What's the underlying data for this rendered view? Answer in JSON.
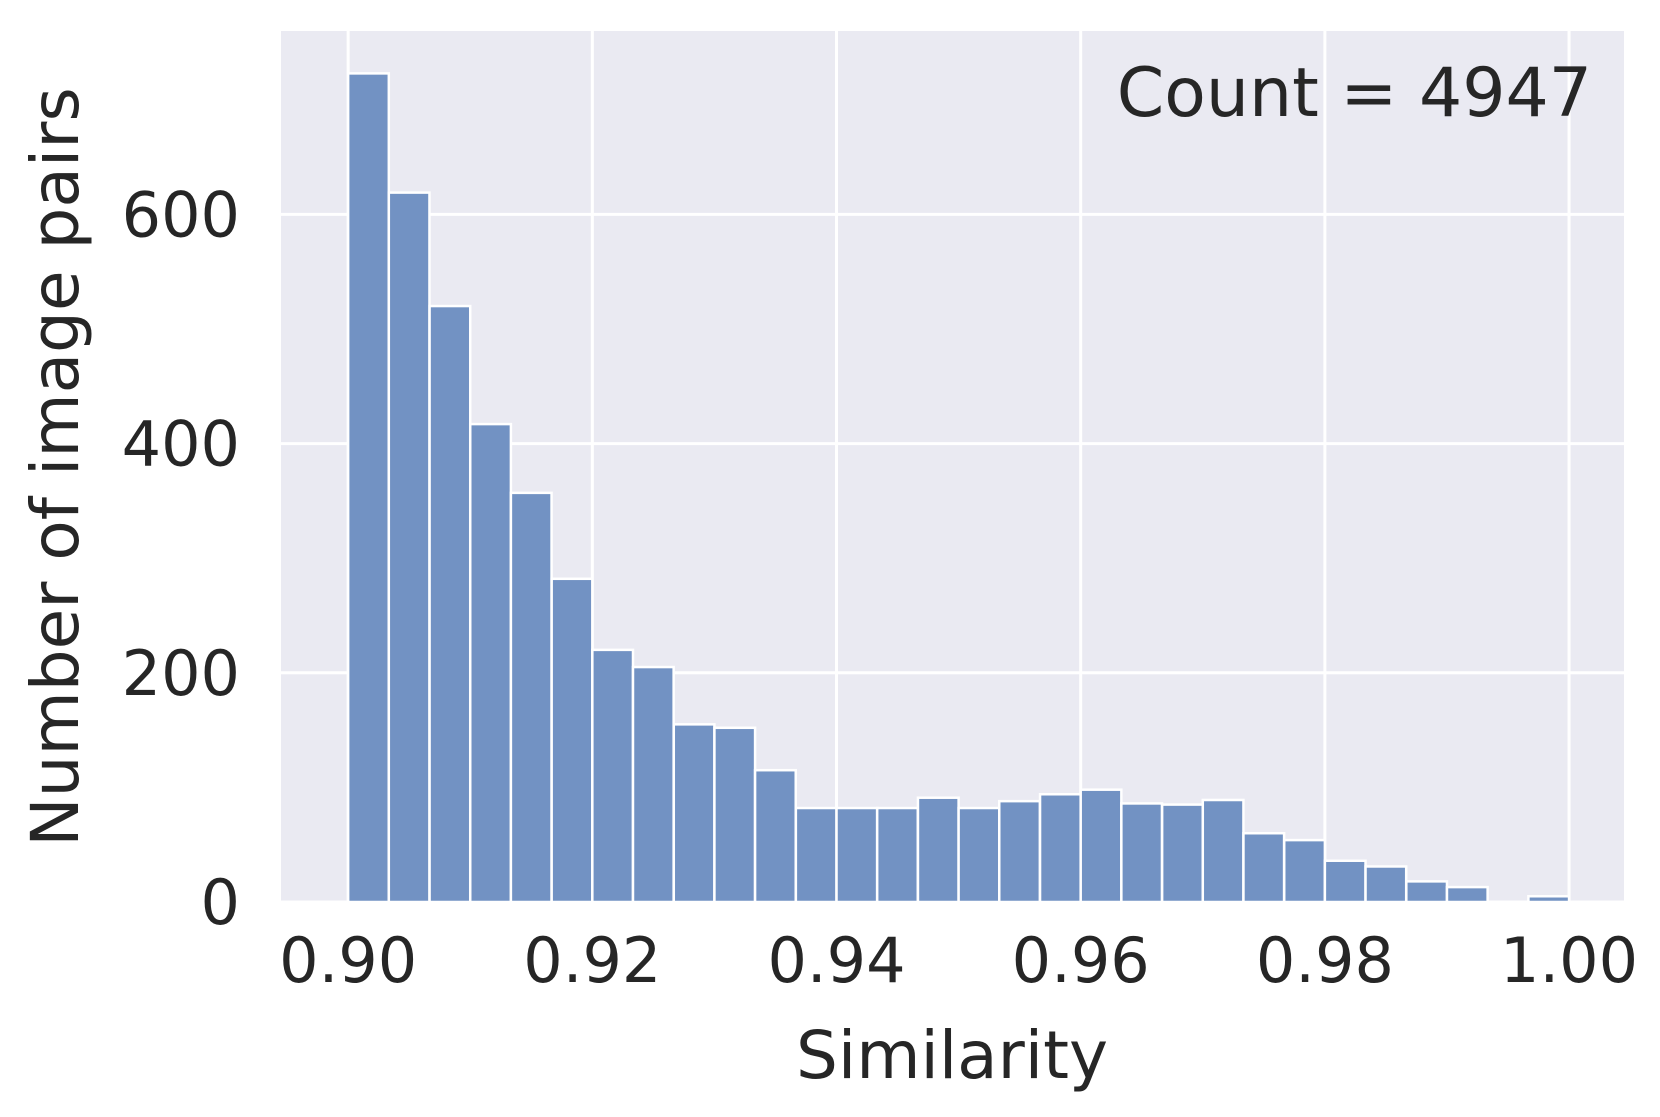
{
  "chart_data": {
    "type": "bar",
    "title": "",
    "xlabel": "Similarity",
    "ylabel": "Number of image pairs",
    "annotation": "Count = 4947",
    "x_ticks": [
      "0.90",
      "0.92",
      "0.94",
      "0.96",
      "0.98",
      "1.00"
    ],
    "x_tick_values": [
      0.9,
      0.92,
      0.94,
      0.96,
      0.98,
      1.0
    ],
    "y_ticks": [
      "0",
      "200",
      "400",
      "600"
    ],
    "y_tick_values": [
      0,
      200,
      400,
      600
    ],
    "xlim": [
      0.8945,
      1.0045
    ],
    "ylim": [
      0,
      760
    ],
    "grid": true,
    "bin_width": 0.00333,
    "bin_starts": [
      0.9,
      0.90333,
      0.90667,
      0.91,
      0.91333,
      0.91667,
      0.92,
      0.92333,
      0.92667,
      0.93,
      0.93333,
      0.93667,
      0.94,
      0.94333,
      0.94667,
      0.95,
      0.95333,
      0.95667,
      0.96,
      0.96333,
      0.96667,
      0.97,
      0.97333,
      0.97667,
      0.98,
      0.98333,
      0.98667,
      0.99,
      0.99333,
      0.99667
    ],
    "values": [
      723,
      619,
      520,
      417,
      357,
      282,
      220,
      205,
      155,
      152,
      115,
      82,
      82,
      82,
      91,
      82,
      88,
      94,
      98,
      86,
      85,
      89,
      60,
      54,
      36,
      31,
      18,
      13,
      0,
      5
    ],
    "colors": {
      "bar_fill": "#7292c3",
      "bar_edge": "#ffffff",
      "background": "#eaeaf2",
      "grid": "#ffffff"
    }
  }
}
